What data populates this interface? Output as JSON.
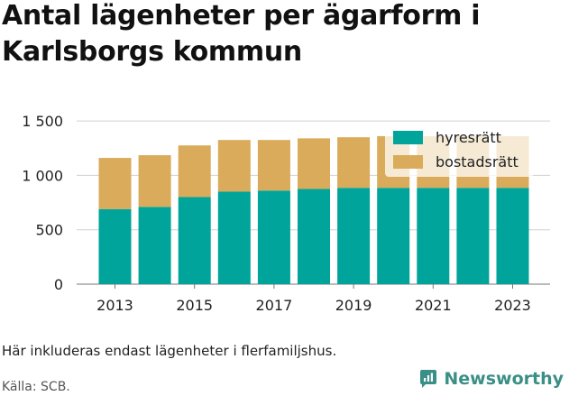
{
  "title_lines": [
    "Antal lägenheter per ägarform i",
    "Karlsborgs kommun"
  ],
  "footnote": "Här inkluderas endast lägenheter i flerfamiljshus.",
  "source": "Källa: SCB.",
  "brand": {
    "name": "Newsworthy",
    "icon": "newsworthy-logo-icon",
    "color": "#3a8f86"
  },
  "chart_data": {
    "type": "bar",
    "stacked": true,
    "categories": [
      "2013",
      "2014",
      "2015",
      "2016",
      "2017",
      "2018",
      "2019",
      "2020",
      "2021",
      "2022",
      "2023"
    ],
    "x_tick_labels": [
      "2013",
      "",
      "2015",
      "",
      "2017",
      "",
      "2019",
      "",
      "2021",
      "",
      "2023"
    ],
    "series": [
      {
        "name": "hyresrätt",
        "color": "#00a49a",
        "values": [
          690,
          710,
          800,
          850,
          860,
          875,
          885,
          885,
          885,
          885,
          885
        ]
      },
      {
        "name": "bostadsrätt",
        "color": "#d9ab5a",
        "values": [
          470,
          475,
          475,
          475,
          465,
          465,
          465,
          475,
          475,
          475,
          475
        ]
      }
    ],
    "ylim": [
      0,
      1600
    ],
    "yticks": [
      0,
      500,
      1000,
      1500
    ],
    "ytick_labels": [
      "0",
      "500",
      "1 000",
      "1 500"
    ],
    "grid": true,
    "legend_position": "top-right",
    "xlabel": "",
    "ylabel": ""
  }
}
